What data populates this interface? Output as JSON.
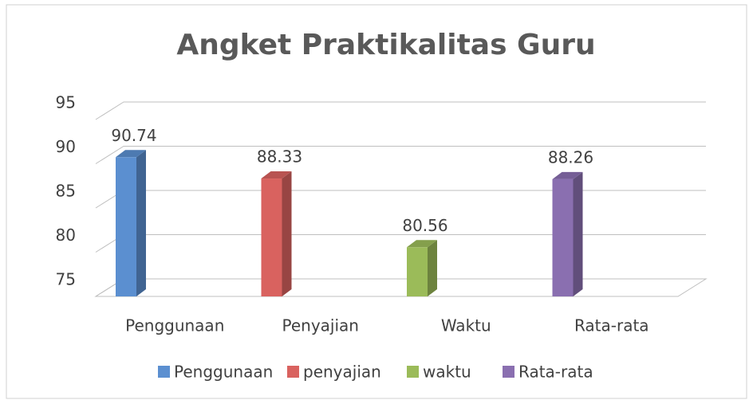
{
  "chart_data": {
    "type": "bar3d",
    "title": "Angket Praktikalitas Guru",
    "categories": [
      "Penggunaan",
      "Penyajian",
      "Waktu",
      "Rata-rata"
    ],
    "series": [
      {
        "name": "Penggunaan",
        "color": "#5b8fd0",
        "values": [
          90.74,
          null,
          null,
          null
        ]
      },
      {
        "name": "penyajian",
        "color": "#d9625f",
        "values": [
          null,
          88.33,
          null,
          null
        ]
      },
      {
        "name": "waktu",
        "color": "#9bbb59",
        "values": [
          null,
          null,
          80.56,
          null
        ]
      },
      {
        "name": "Rata-rata",
        "color": "#8a6fb0",
        "values": [
          null,
          null,
          null,
          88.26
        ]
      }
    ],
    "ylim": [
      75,
      95
    ],
    "yticks": [
      75,
      80,
      85,
      90,
      95
    ],
    "grid": true,
    "legend": "bottom"
  }
}
